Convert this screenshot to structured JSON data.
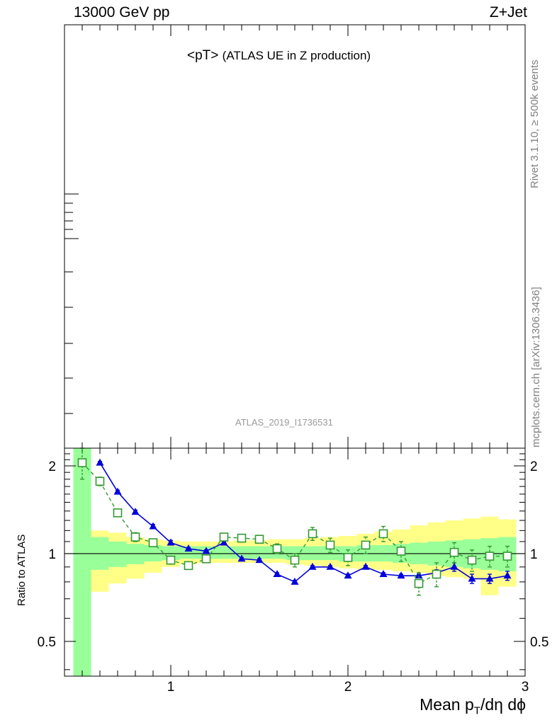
{
  "header": {
    "energy": "13000 GeV pp",
    "process": "Z+Jet",
    "title_main": "<pT>",
    "title_sub": "(ATLAS UE in Z production)",
    "analysis_id": "ATLAS_2019_I1736531",
    "rivet_label": "Rivet 3.1.10, ≥ 500k events",
    "mcplots_label": "mcplots.cern.ch [arXiv:1306.3436]"
  },
  "axes": {
    "ylabel": "Ratio to ATLAS",
    "xlabel_main": "Mean p",
    "xlabel_sub": "T",
    "xlabel_rest": "/dη dϕ"
  },
  "chart_data": {
    "type": "line",
    "x_ticks": [
      "1",
      "2",
      "3"
    ],
    "y_ticks": [
      "0.5",
      "1",
      "2"
    ],
    "xlim": [
      0.4,
      3.0
    ],
    "ylim": [
      0.38,
      2.3
    ],
    "y_scale": "log",
    "bins": [
      0.45,
      0.55,
      0.65,
      0.75,
      0.85,
      0.95,
      1.05,
      1.15,
      1.25,
      1.35,
      1.45,
      1.55,
      1.65,
      1.75,
      1.85,
      1.95,
      2.05,
      2.15,
      2.25,
      2.35,
      2.45,
      2.55,
      2.65,
      2.75,
      2.85,
      2.95
    ],
    "band_inner": {
      "lo": [
        0.34,
        0.88,
        0.9,
        0.92,
        0.94,
        0.95,
        0.96,
        0.96,
        0.96,
        0.96,
        0.96,
        0.96,
        0.95,
        0.95,
        0.95,
        0.94,
        0.94,
        0.94,
        0.93,
        0.92,
        0.91,
        0.9,
        0.89,
        0.88,
        0.87
      ],
      "hi": [
        2.3,
        1.14,
        1.1,
        1.08,
        1.07,
        1.06,
        1.06,
        1.06,
        1.06,
        1.06,
        1.06,
        1.06,
        1.06,
        1.06,
        1.06,
        1.06,
        1.07,
        1.07,
        1.08,
        1.09,
        1.1,
        1.11,
        1.12,
        1.13,
        1.14
      ]
    },
    "band_outer": {
      "lo": [
        0.34,
        0.74,
        0.79,
        0.82,
        0.86,
        0.9,
        0.92,
        0.93,
        0.93,
        0.93,
        0.93,
        0.93,
        0.92,
        0.91,
        0.9,
        0.89,
        0.88,
        0.88,
        0.87,
        0.86,
        0.84,
        0.83,
        0.82,
        0.72,
        0.77
      ],
      "hi": [
        2.3,
        1.2,
        1.18,
        1.14,
        1.12,
        1.11,
        1.1,
        1.1,
        1.1,
        1.11,
        1.11,
        1.12,
        1.12,
        1.13,
        1.14,
        1.15,
        1.17,
        1.19,
        1.21,
        1.25,
        1.28,
        1.3,
        1.32,
        1.34,
        1.31
      ]
    },
    "series": [
      {
        "x": [
          0.6,
          0.7,
          0.8,
          0.9,
          1.0,
          1.1,
          1.2,
          1.3,
          1.4,
          1.5,
          1.6,
          1.7,
          1.8,
          1.9,
          2.0,
          2.1,
          2.2,
          2.3,
          2.4,
          2.5,
          2.6,
          2.7,
          2.8,
          2.9
        ],
        "y": [
          2.05,
          1.63,
          1.39,
          1.24,
          1.09,
          1.04,
          1.02,
          1.09,
          0.96,
          0.95,
          0.85,
          0.8,
          0.9,
          0.9,
          0.84,
          0.9,
          0.85,
          0.84,
          0.84,
          0.86,
          0.9,
          0.82,
          0.82,
          0.84
        ],
        "err": [
          0.02,
          0.02,
          0.02,
          0.02,
          0.02,
          0.01,
          0.01,
          0.01,
          0.01,
          0.01,
          0.01,
          0.01,
          0.01,
          0.01,
          0.01,
          0.01,
          0.01,
          0.01,
          0.01,
          0.02,
          0.03,
          0.03,
          0.03,
          0.03
        ],
        "color": "#0000dd",
        "marker": "triangle",
        "style": "solid"
      },
      {
        "x": [
          0.5,
          0.6,
          0.7,
          0.8,
          0.9,
          1.0,
          1.1,
          1.2,
          1.3,
          1.4,
          1.5,
          1.6,
          1.7,
          1.8,
          1.9,
          2.0,
          2.1,
          2.2,
          2.3,
          2.4,
          2.5,
          2.6,
          2.7,
          2.8,
          2.9
        ],
        "y": [
          2.05,
          1.77,
          1.38,
          1.14,
          1.09,
          0.95,
          0.91,
          0.96,
          1.14,
          1.13,
          1.12,
          1.04,
          0.95,
          1.17,
          1.07,
          0.97,
          1.07,
          1.17,
          1.02,
          0.79,
          0.85,
          1.01,
          0.95,
          0.98,
          0.98
        ],
        "err": [
          0.25,
          0.06,
          0.04,
          0.04,
          0.03,
          0.03,
          0.02,
          0.02,
          0.03,
          0.03,
          0.03,
          0.04,
          0.05,
          0.06,
          0.06,
          0.06,
          0.07,
          0.07,
          0.08,
          0.07,
          0.08,
          0.08,
          0.08,
          0.08,
          0.08
        ],
        "color": "#339933",
        "marker": "open-square",
        "style": "dashed"
      }
    ],
    "colors": {
      "band_inner": "#99ff99",
      "band_outer": "#ffff88",
      "reference_line": "#000000"
    }
  }
}
